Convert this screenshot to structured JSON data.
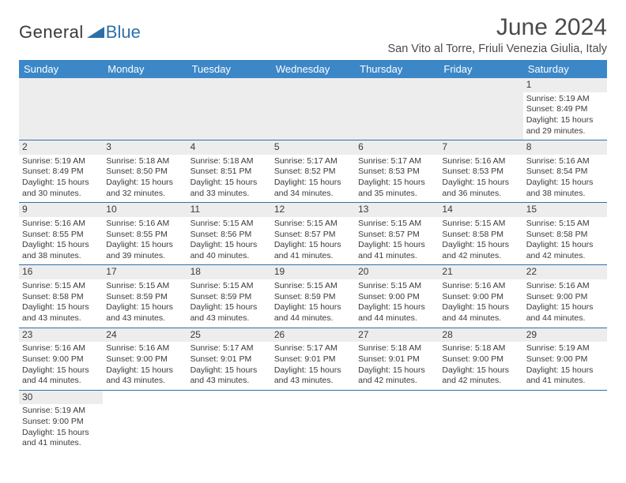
{
  "brand": {
    "part1": "General",
    "part2": "Blue"
  },
  "title": {
    "month": "June 2024",
    "location": "San Vito al Torre, Friuli Venezia Giulia, Italy"
  },
  "colors": {
    "header_bg": "#3b87c8",
    "rule": "#2f6fa8",
    "daynum_bg": "#ededed",
    "text": "#3a3a3a"
  },
  "daysOfWeek": [
    "Sunday",
    "Monday",
    "Tuesday",
    "Wednesday",
    "Thursday",
    "Friday",
    "Saturday"
  ],
  "weeks": [
    [
      null,
      null,
      null,
      null,
      null,
      null,
      {
        "n": "1",
        "sr": "Sunrise: 5:19 AM",
        "ss": "Sunset: 8:49 PM",
        "dl1": "Daylight: 15 hours",
        "dl2": "and 29 minutes."
      }
    ],
    [
      {
        "n": "2",
        "sr": "Sunrise: 5:19 AM",
        "ss": "Sunset: 8:49 PM",
        "dl1": "Daylight: 15 hours",
        "dl2": "and 30 minutes."
      },
      {
        "n": "3",
        "sr": "Sunrise: 5:18 AM",
        "ss": "Sunset: 8:50 PM",
        "dl1": "Daylight: 15 hours",
        "dl2": "and 32 minutes."
      },
      {
        "n": "4",
        "sr": "Sunrise: 5:18 AM",
        "ss": "Sunset: 8:51 PM",
        "dl1": "Daylight: 15 hours",
        "dl2": "and 33 minutes."
      },
      {
        "n": "5",
        "sr": "Sunrise: 5:17 AM",
        "ss": "Sunset: 8:52 PM",
        "dl1": "Daylight: 15 hours",
        "dl2": "and 34 minutes."
      },
      {
        "n": "6",
        "sr": "Sunrise: 5:17 AM",
        "ss": "Sunset: 8:53 PM",
        "dl1": "Daylight: 15 hours",
        "dl2": "and 35 minutes."
      },
      {
        "n": "7",
        "sr": "Sunrise: 5:16 AM",
        "ss": "Sunset: 8:53 PM",
        "dl1": "Daylight: 15 hours",
        "dl2": "and 36 minutes."
      },
      {
        "n": "8",
        "sr": "Sunrise: 5:16 AM",
        "ss": "Sunset: 8:54 PM",
        "dl1": "Daylight: 15 hours",
        "dl2": "and 38 minutes."
      }
    ],
    [
      {
        "n": "9",
        "sr": "Sunrise: 5:16 AM",
        "ss": "Sunset: 8:55 PM",
        "dl1": "Daylight: 15 hours",
        "dl2": "and 38 minutes."
      },
      {
        "n": "10",
        "sr": "Sunrise: 5:16 AM",
        "ss": "Sunset: 8:55 PM",
        "dl1": "Daylight: 15 hours",
        "dl2": "and 39 minutes."
      },
      {
        "n": "11",
        "sr": "Sunrise: 5:15 AM",
        "ss": "Sunset: 8:56 PM",
        "dl1": "Daylight: 15 hours",
        "dl2": "and 40 minutes."
      },
      {
        "n": "12",
        "sr": "Sunrise: 5:15 AM",
        "ss": "Sunset: 8:57 PM",
        "dl1": "Daylight: 15 hours",
        "dl2": "and 41 minutes."
      },
      {
        "n": "13",
        "sr": "Sunrise: 5:15 AM",
        "ss": "Sunset: 8:57 PM",
        "dl1": "Daylight: 15 hours",
        "dl2": "and 41 minutes."
      },
      {
        "n": "14",
        "sr": "Sunrise: 5:15 AM",
        "ss": "Sunset: 8:58 PM",
        "dl1": "Daylight: 15 hours",
        "dl2": "and 42 minutes."
      },
      {
        "n": "15",
        "sr": "Sunrise: 5:15 AM",
        "ss": "Sunset: 8:58 PM",
        "dl1": "Daylight: 15 hours",
        "dl2": "and 42 minutes."
      }
    ],
    [
      {
        "n": "16",
        "sr": "Sunrise: 5:15 AM",
        "ss": "Sunset: 8:58 PM",
        "dl1": "Daylight: 15 hours",
        "dl2": "and 43 minutes."
      },
      {
        "n": "17",
        "sr": "Sunrise: 5:15 AM",
        "ss": "Sunset: 8:59 PM",
        "dl1": "Daylight: 15 hours",
        "dl2": "and 43 minutes."
      },
      {
        "n": "18",
        "sr": "Sunrise: 5:15 AM",
        "ss": "Sunset: 8:59 PM",
        "dl1": "Daylight: 15 hours",
        "dl2": "and 43 minutes."
      },
      {
        "n": "19",
        "sr": "Sunrise: 5:15 AM",
        "ss": "Sunset: 8:59 PM",
        "dl1": "Daylight: 15 hours",
        "dl2": "and 44 minutes."
      },
      {
        "n": "20",
        "sr": "Sunrise: 5:15 AM",
        "ss": "Sunset: 9:00 PM",
        "dl1": "Daylight: 15 hours",
        "dl2": "and 44 minutes."
      },
      {
        "n": "21",
        "sr": "Sunrise: 5:16 AM",
        "ss": "Sunset: 9:00 PM",
        "dl1": "Daylight: 15 hours",
        "dl2": "and 44 minutes."
      },
      {
        "n": "22",
        "sr": "Sunrise: 5:16 AM",
        "ss": "Sunset: 9:00 PM",
        "dl1": "Daylight: 15 hours",
        "dl2": "and 44 minutes."
      }
    ],
    [
      {
        "n": "23",
        "sr": "Sunrise: 5:16 AM",
        "ss": "Sunset: 9:00 PM",
        "dl1": "Daylight: 15 hours",
        "dl2": "and 44 minutes."
      },
      {
        "n": "24",
        "sr": "Sunrise: 5:16 AM",
        "ss": "Sunset: 9:00 PM",
        "dl1": "Daylight: 15 hours",
        "dl2": "and 43 minutes."
      },
      {
        "n": "25",
        "sr": "Sunrise: 5:17 AM",
        "ss": "Sunset: 9:01 PM",
        "dl1": "Daylight: 15 hours",
        "dl2": "and 43 minutes."
      },
      {
        "n": "26",
        "sr": "Sunrise: 5:17 AM",
        "ss": "Sunset: 9:01 PM",
        "dl1": "Daylight: 15 hours",
        "dl2": "and 43 minutes."
      },
      {
        "n": "27",
        "sr": "Sunrise: 5:18 AM",
        "ss": "Sunset: 9:01 PM",
        "dl1": "Daylight: 15 hours",
        "dl2": "and 42 minutes."
      },
      {
        "n": "28",
        "sr": "Sunrise: 5:18 AM",
        "ss": "Sunset: 9:00 PM",
        "dl1": "Daylight: 15 hours",
        "dl2": "and 42 minutes."
      },
      {
        "n": "29",
        "sr": "Sunrise: 5:19 AM",
        "ss": "Sunset: 9:00 PM",
        "dl1": "Daylight: 15 hours",
        "dl2": "and 41 minutes."
      }
    ],
    [
      {
        "n": "30",
        "sr": "Sunrise: 5:19 AM",
        "ss": "Sunset: 9:00 PM",
        "dl1": "Daylight: 15 hours",
        "dl2": "and 41 minutes."
      },
      null,
      null,
      null,
      null,
      null,
      null
    ]
  ]
}
